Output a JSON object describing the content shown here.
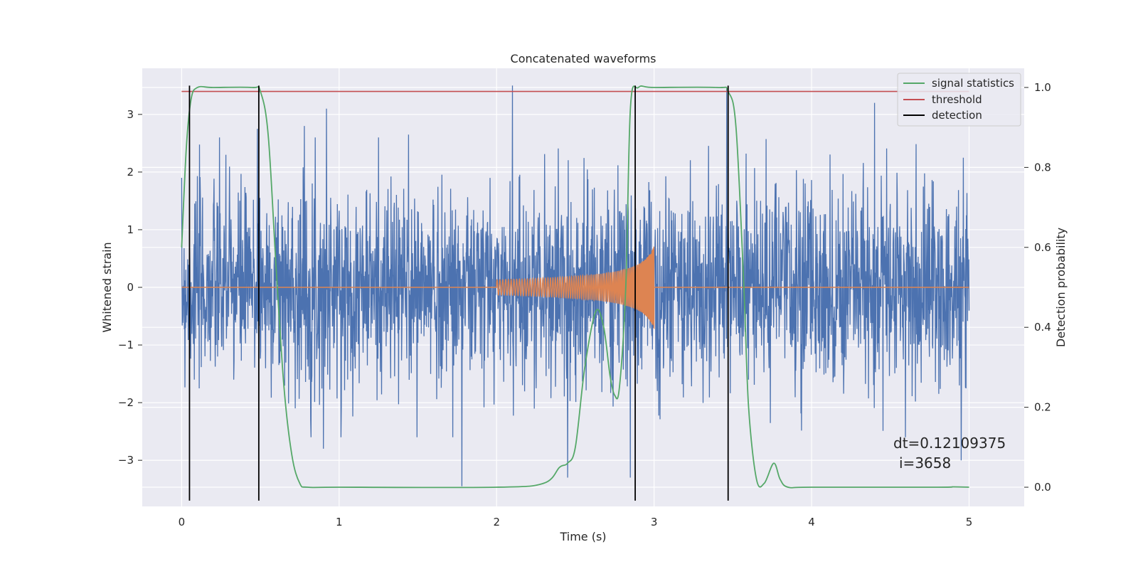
{
  "chart_data": {
    "type": "line",
    "title": "Concatenated waveforms",
    "xlabel": "Time (s)",
    "ylabel": "Whitened strain",
    "ylabel_right": "Detection probability",
    "xlim": [
      -0.25,
      5.35
    ],
    "ylim": [
      -3.8,
      3.8
    ],
    "ylim_right": [
      -0.048,
      1.048
    ],
    "xticks": [
      0,
      1,
      2,
      3,
      4,
      5
    ],
    "yticks": [
      -3,
      -2,
      -1,
      0,
      1,
      2,
      3
    ],
    "yticks_right": [
      0.0,
      0.2,
      0.4,
      0.6,
      0.8,
      1.0
    ],
    "grid": true,
    "legend_position": "top-right",
    "series": [
      {
        "name": "",
        "axis": "left",
        "color": "#4c72b0",
        "description_range": {
          "x_start": 0,
          "x_end": 5,
          "amplitude_typical": 1.3,
          "amplitude_peak": 3.5
        },
        "peaks": [
          {
            "x": 0.0,
            "y": 1.9
          },
          {
            "x": 0.0,
            "y": -2.2
          },
          {
            "x": 0.28,
            "y": 2.3
          },
          {
            "x": 0.48,
            "y": 2.75
          },
          {
            "x": 0.78,
            "y": 2.8
          },
          {
            "x": 0.9,
            "y": -2.8
          },
          {
            "x": 0.92,
            "y": 3.1
          },
          {
            "x": 1.44,
            "y": 2.65
          },
          {
            "x": 1.78,
            "y": -3.45
          },
          {
            "x": 2.1,
            "y": 3.5
          },
          {
            "x": 2.45,
            "y": -3.3
          },
          {
            "x": 2.85,
            "y": -3.3
          },
          {
            "x": 3.46,
            "y": 3.45
          },
          {
            "x": 4.4,
            "y": 3.2
          },
          {
            "x": 4.95,
            "y": -3.0
          }
        ]
      },
      {
        "name": "",
        "axis": "left",
        "color": "#dd8452",
        "x": [
          0,
          2.0,
          2.2,
          2.4,
          2.6,
          2.8,
          2.9,
          3.0,
          3.0,
          5
        ],
        "envelope": [
          0,
          0.15,
          0.18,
          0.22,
          0.28,
          0.4,
          0.55,
          0.9,
          0,
          0
        ]
      },
      {
        "name": "signal statistics",
        "axis": "right",
        "color": "#55a868",
        "x": [
          0.0,
          0.03,
          0.06,
          0.1,
          0.2,
          0.45,
          0.5,
          0.55,
          0.6,
          0.65,
          0.7,
          0.75,
          0.8,
          1.0,
          2.0,
          2.3,
          2.4,
          2.45,
          2.5,
          2.56,
          2.63,
          2.68,
          2.72,
          2.75,
          2.78,
          2.82,
          2.85,
          2.9,
          3.0,
          3.4,
          3.47,
          3.52,
          3.57,
          3.6,
          3.65,
          3.7,
          3.76,
          3.8,
          3.85,
          4.0,
          4.8,
          4.9,
          5.0
        ],
        "y": [
          0.6,
          0.85,
          0.97,
          1.0,
          1.0,
          1.0,
          0.99,
          0.88,
          0.55,
          0.25,
          0.08,
          0.01,
          0.0,
          0.0,
          0.0,
          0.01,
          0.05,
          0.06,
          0.1,
          0.3,
          0.44,
          0.4,
          0.28,
          0.23,
          0.25,
          0.5,
          0.95,
          1.0,
          1.0,
          1.0,
          0.99,
          0.9,
          0.5,
          0.2,
          0.02,
          0.01,
          0.06,
          0.02,
          0.0,
          0.0,
          0.0,
          0.001,
          0.0
        ]
      },
      {
        "name": "threshold",
        "axis": "right",
        "color": "#c44e52",
        "x": [
          0,
          5
        ],
        "y": [
          0.99,
          0.99
        ]
      },
      {
        "name": "detection",
        "axis": "left",
        "color": "#000000",
        "x": [
          0.05,
          0.49,
          2.88,
          3.47
        ],
        "y_range": [
          -3.7,
          3.5
        ]
      }
    ],
    "annotation": {
      "line1": "dt=0.12109375",
      "line2": "i=3658",
      "x": 4.5,
      "y": -3.0
    }
  }
}
